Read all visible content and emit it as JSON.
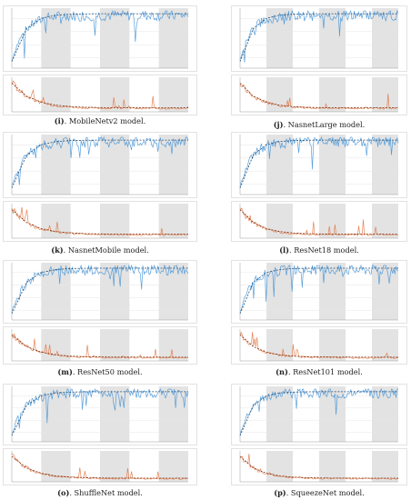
{
  "figure": {
    "panels": [
      {
        "id": "i",
        "label": "(i)",
        "caption": ". MobileNetv2 model."
      },
      {
        "id": "j",
        "label": "(j)",
        "caption": ". NasnetLarge model."
      },
      {
        "id": "k",
        "label": "(k)",
        "caption": ". NasnetMobile model."
      },
      {
        "id": "l",
        "label": "(l)",
        "caption": ". ResNet18 model."
      },
      {
        "id": "m",
        "label": "(m)",
        "caption": ". ResNet50 model."
      },
      {
        "id": "n",
        "label": "(n)",
        "caption": ". ResNet101 model."
      },
      {
        "id": "o",
        "label": "(o)",
        "caption": ". ShuffleNet model."
      },
      {
        "id": "p",
        "label": "(p)",
        "caption": ". SqueezeNet model."
      }
    ],
    "colors": {
      "accuracy": "#3d8fd6",
      "loss": "#e2703a",
      "epoch_shade": "#d9d9d9",
      "grid": "#e6e6e6",
      "axis": "#9a9a9a"
    }
  }
}
